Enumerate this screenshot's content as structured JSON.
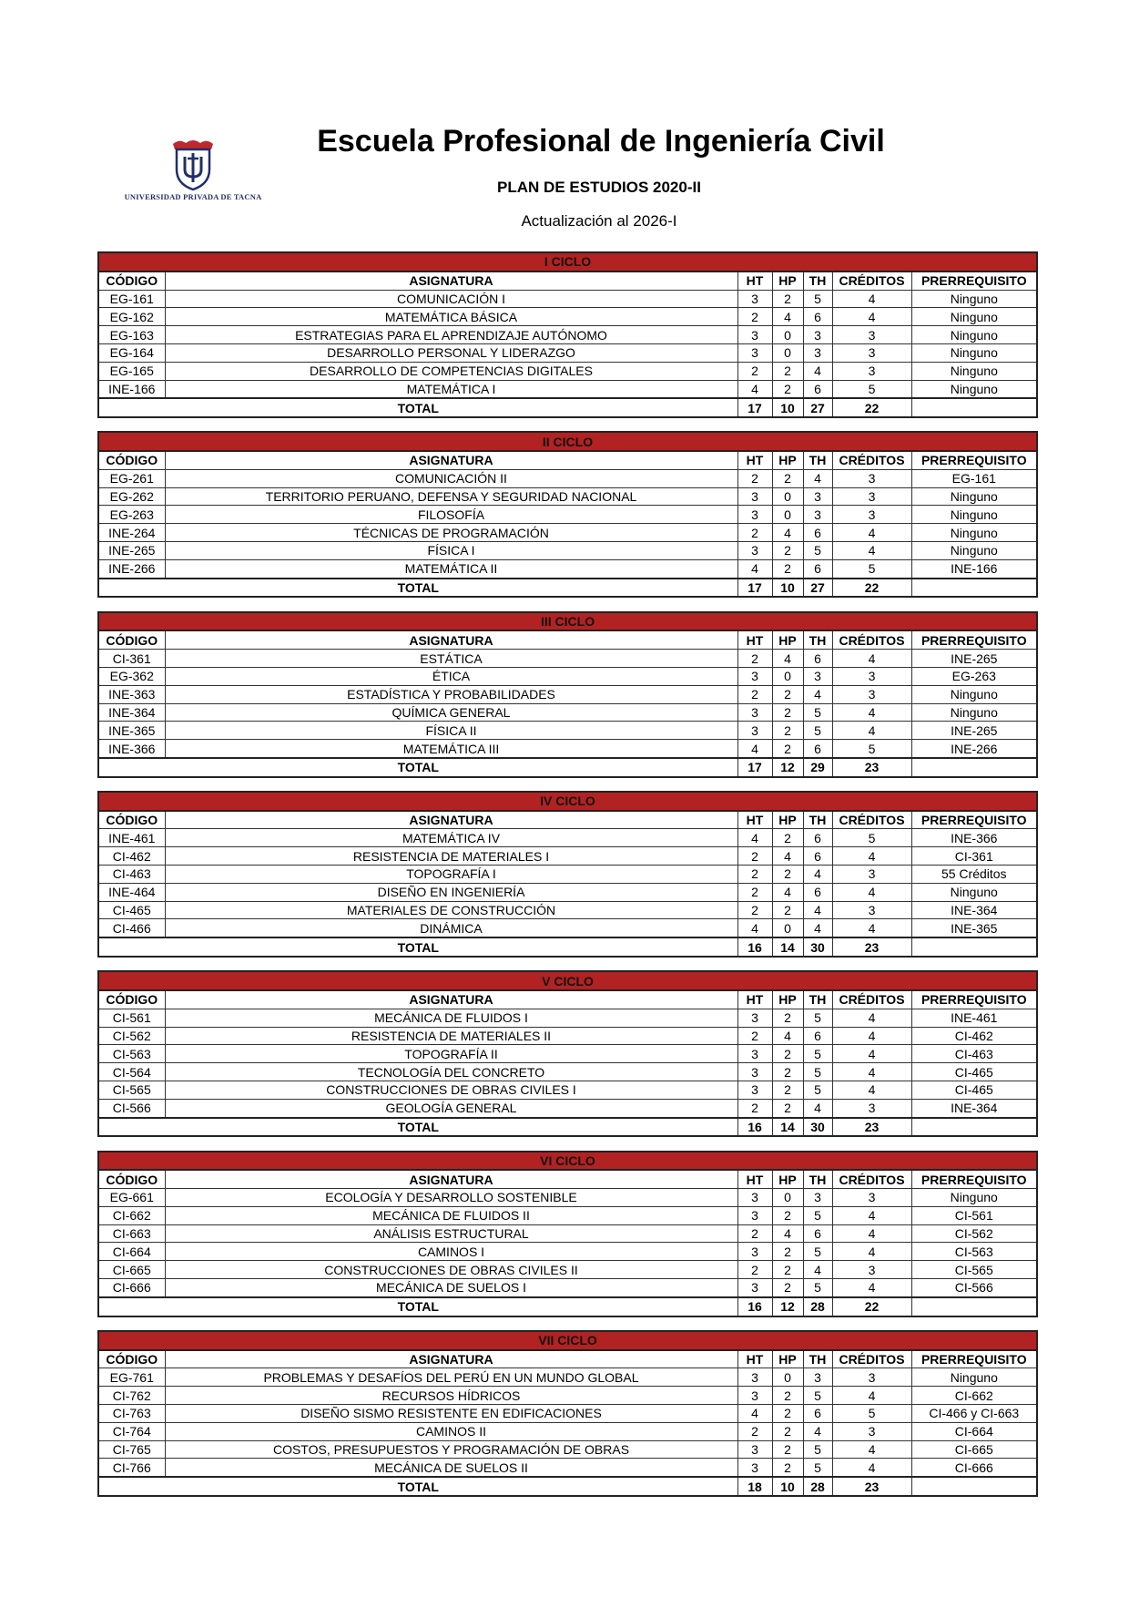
{
  "header": {
    "title": "Escuela Profesional de Ingeniería Civil",
    "subtitle": "PLAN DE ESTUDIOS 2020-II",
    "update": "Actualización al 2026-I",
    "logo_text": "UNIVERSIDAD PRIVADA DE TACNA"
  },
  "colors": {
    "band": "#b22222"
  },
  "columns": [
    "CÓDIGO",
    "ASIGNATURA",
    "HT",
    "HP",
    "TH",
    "CRÉDITOS",
    "PRERREQUISITO"
  ],
  "total_label": "TOTAL",
  "ciclos": [
    {
      "name": "I CICLO",
      "rows": [
        [
          "EG-161",
          "COMUNICACIÓN I",
          "3",
          "2",
          "5",
          "4",
          "Ninguno"
        ],
        [
          "EG-162",
          "MATEMÁTICA BÁSICA",
          "2",
          "4",
          "6",
          "4",
          "Ninguno"
        ],
        [
          "EG-163",
          "ESTRATEGIAS PARA EL APRENDIZAJE AUTÓNOMO",
          "3",
          "0",
          "3",
          "3",
          "Ninguno"
        ],
        [
          "EG-164",
          "DESARROLLO PERSONAL Y LIDERAZGO",
          "3",
          "0",
          "3",
          "3",
          "Ninguno"
        ],
        [
          "EG-165",
          "DESARROLLO DE COMPETENCIAS DIGITALES",
          "2",
          "2",
          "4",
          "3",
          "Ninguno"
        ],
        [
          "INE-166",
          "MATEMÁTICA I",
          "4",
          "2",
          "6",
          "5",
          "Ninguno"
        ]
      ],
      "total": [
        "17",
        "10",
        "27",
        "22"
      ]
    },
    {
      "name": "II CICLO",
      "rows": [
        [
          "EG-261",
          "COMUNICACIÓN II",
          "2",
          "2",
          "4",
          "3",
          "EG-161"
        ],
        [
          "EG-262",
          "TERRITORIO PERUANO, DEFENSA Y SEGURIDAD NACIONAL",
          "3",
          "0",
          "3",
          "3",
          "Ninguno"
        ],
        [
          "EG-263",
          "FILOSOFÍA",
          "3",
          "0",
          "3",
          "3",
          "Ninguno"
        ],
        [
          "INE-264",
          "TÉCNICAS DE PROGRAMACIÓN",
          "2",
          "4",
          "6",
          "4",
          "Ninguno"
        ],
        [
          "INE-265",
          "FÍSICA I",
          "3",
          "2",
          "5",
          "4",
          "Ninguno"
        ],
        [
          "INE-266",
          "MATEMÁTICA II",
          "4",
          "2",
          "6",
          "5",
          "INE-166"
        ]
      ],
      "total": [
        "17",
        "10",
        "27",
        "22"
      ]
    },
    {
      "name": "III CICLO",
      "rows": [
        [
          "CI-361",
          "ESTÁTICA",
          "2",
          "4",
          "6",
          "4",
          "INE-265"
        ],
        [
          "EG-362",
          "ÉTICA",
          "3",
          "0",
          "3",
          "3",
          "EG-263"
        ],
        [
          "INE-363",
          "ESTADÍSTICA Y PROBABILIDADES",
          "2",
          "2",
          "4",
          "3",
          "Ninguno"
        ],
        [
          "INE-364",
          "QUÍMICA GENERAL",
          "3",
          "2",
          "5",
          "4",
          "Ninguno"
        ],
        [
          "INE-365",
          "FÍSICA II",
          "3",
          "2",
          "5",
          "4",
          "INE-265"
        ],
        [
          "INE-366",
          "MATEMÁTICA III",
          "4",
          "2",
          "6",
          "5",
          "INE-266"
        ]
      ],
      "total": [
        "17",
        "12",
        "29",
        "23"
      ]
    },
    {
      "name": "IV CICLO",
      "rows": [
        [
          "INE-461",
          "MATEMÁTICA IV",
          "4",
          "2",
          "6",
          "5",
          "INE-366"
        ],
        [
          "CI-462",
          "RESISTENCIA DE MATERIALES I",
          "2",
          "4",
          "6",
          "4",
          "CI-361"
        ],
        [
          "CI-463",
          "TOPOGRAFÍA I",
          "2",
          "2",
          "4",
          "3",
          "55 Créditos"
        ],
        [
          "INE-464",
          "DISEÑO EN INGENIERÍA",
          "2",
          "4",
          "6",
          "4",
          "Ninguno"
        ],
        [
          "CI-465",
          "MATERIALES DE CONSTRUCCIÓN",
          "2",
          "2",
          "4",
          "3",
          "INE-364"
        ],
        [
          "CI-466",
          "DINÁMICA",
          "4",
          "0",
          "4",
          "4",
          "INE-365"
        ]
      ],
      "total": [
        "16",
        "14",
        "30",
        "23"
      ]
    },
    {
      "name": "V CICLO",
      "rows": [
        [
          "CI-561",
          "MECÁNICA DE FLUIDOS I",
          "3",
          "2",
          "5",
          "4",
          "INE-461"
        ],
        [
          "CI-562",
          "RESISTENCIA DE MATERIALES II",
          "2",
          "4",
          "6",
          "4",
          "CI-462"
        ],
        [
          "CI-563",
          "TOPOGRAFÍA II",
          "3",
          "2",
          "5",
          "4",
          "CI-463"
        ],
        [
          "CI-564",
          "TECNOLOGÍA DEL CONCRETO",
          "3",
          "2",
          "5",
          "4",
          "CI-465"
        ],
        [
          "CI-565",
          "CONSTRUCCIONES DE OBRAS CIVILES I",
          "3",
          "2",
          "5",
          "4",
          "CI-465"
        ],
        [
          "CI-566",
          "GEOLOGÍA GENERAL",
          "2",
          "2",
          "4",
          "3",
          "INE-364"
        ]
      ],
      "total": [
        "16",
        "14",
        "30",
        "23"
      ]
    },
    {
      "name": "VI CICLO",
      "rows": [
        [
          "EG-661",
          "ECOLOGÍA Y DESARROLLO SOSTENIBLE",
          "3",
          "0",
          "3",
          "3",
          "Ninguno"
        ],
        [
          "CI-662",
          "MECÁNICA DE FLUIDOS II",
          "3",
          "2",
          "5",
          "4",
          "CI-561"
        ],
        [
          "CI-663",
          "ANÁLISIS ESTRUCTURAL",
          "2",
          "4",
          "6",
          "4",
          "CI-562"
        ],
        [
          "CI-664",
          "CAMINOS I",
          "3",
          "2",
          "5",
          "4",
          "CI-563"
        ],
        [
          "CI-665",
          "CONSTRUCCIONES DE OBRAS CIVILES II",
          "2",
          "2",
          "4",
          "3",
          "CI-565"
        ],
        [
          "CI-666",
          "MECÁNICA DE SUELOS I",
          "3",
          "2",
          "5",
          "4",
          "CI-566"
        ]
      ],
      "total": [
        "16",
        "12",
        "28",
        "22"
      ]
    },
    {
      "name": "VII CICLO",
      "rows": [
        [
          "EG-761",
          "PROBLEMAS Y DESAFÍOS DEL PERÚ EN UN MUNDO GLOBAL",
          "3",
          "0",
          "3",
          "3",
          "Ninguno"
        ],
        [
          "CI-762",
          "RECURSOS HÍDRICOS",
          "3",
          "2",
          "5",
          "4",
          "CI-662"
        ],
        [
          "CI-763",
          "DISEÑO SISMO RESISTENTE EN EDIFICACIONES",
          "4",
          "2",
          "6",
          "5",
          "CI-466 y CI-663"
        ],
        [
          "CI-764",
          "CAMINOS II",
          "2",
          "2",
          "4",
          "3",
          "CI-664"
        ],
        [
          "CI-765",
          "COSTOS, PRESUPUESTOS Y PROGRAMACIÓN DE OBRAS",
          "3",
          "2",
          "5",
          "4",
          "CI-665"
        ],
        [
          "CI-766",
          "MECÁNICA DE SUELOS II",
          "3",
          "2",
          "5",
          "4",
          "CI-666"
        ]
      ],
      "total": [
        "18",
        "10",
        "28",
        "23"
      ]
    }
  ]
}
